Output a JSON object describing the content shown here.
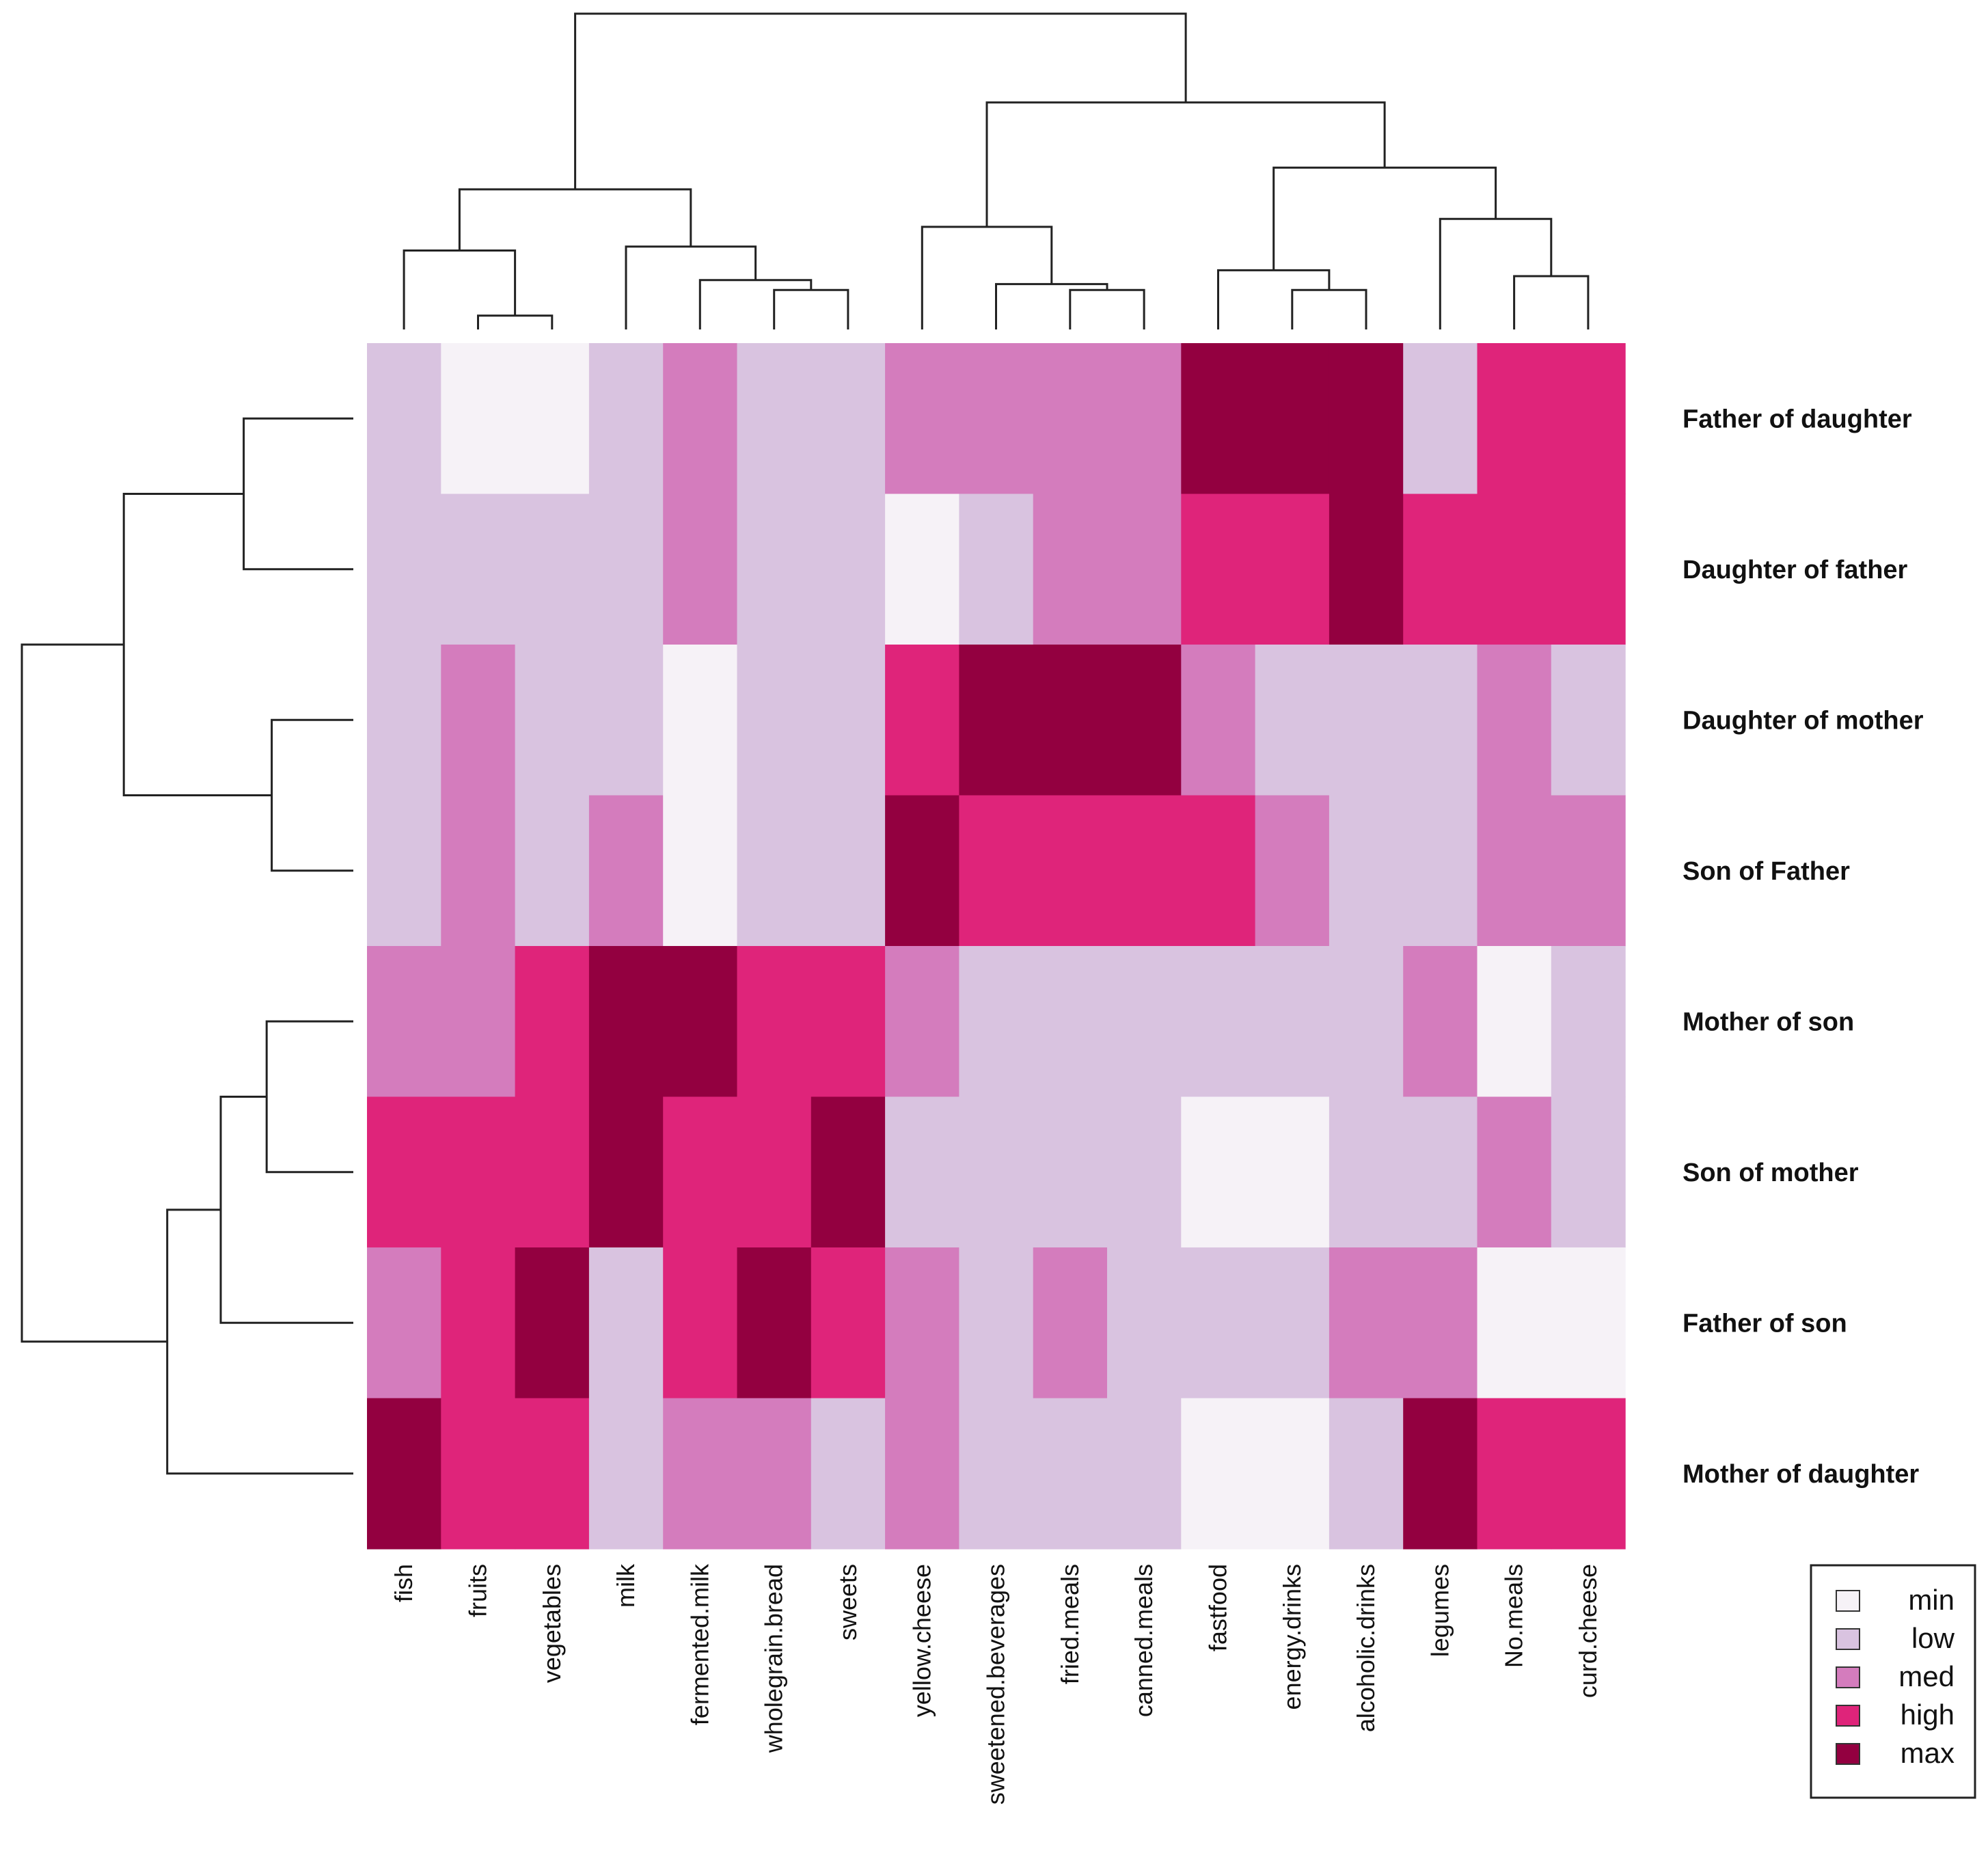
{
  "chart_data": {
    "type": "heatmap",
    "title": "",
    "columns": [
      "fish",
      "fruits",
      "vegetables",
      "milk",
      "fermented.milk",
      "wholegrain.bread",
      "sweets",
      "yellow.cheese",
      "sweetened.beverages",
      "fried.meals",
      "canned.meals",
      "fastfood",
      "energy.drinks",
      "alcoholic.drinks",
      "legumes",
      "No.meals",
      "curd.cheese"
    ],
    "rows": [
      "Father of daughter",
      "Daughter of father",
      "Daughter of mother",
      "Son of Father",
      "Mother of son",
      "Son of mother",
      "Father of son",
      "Mother of daughter"
    ],
    "levels": [
      "min",
      "low",
      "med",
      "high",
      "max"
    ],
    "level_colors": {
      "min": "#f6f2f7",
      "low": "#d9c3e0",
      "med": "#d47cbd",
      "high": "#df247a",
      "max": "#930040"
    },
    "values": [
      [
        "low",
        "min",
        "min",
        "low",
        "med",
        "low",
        "low",
        "med",
        "med",
        "med",
        "med",
        "max",
        "max",
        "max",
        "low",
        "high",
        "high"
      ],
      [
        "low",
        "low",
        "low",
        "low",
        "med",
        "low",
        "low",
        "min",
        "low",
        "med",
        "med",
        "high",
        "high",
        "max",
        "high",
        "high",
        "high"
      ],
      [
        "low",
        "med",
        "low",
        "low",
        "min",
        "low",
        "low",
        "high",
        "max",
        "max",
        "max",
        "med",
        "low",
        "low",
        "low",
        "med",
        "low"
      ],
      [
        "low",
        "med",
        "low",
        "med",
        "min",
        "low",
        "low",
        "max",
        "high",
        "high",
        "high",
        "high",
        "med",
        "low",
        "low",
        "med",
        "med"
      ],
      [
        "med",
        "med",
        "high",
        "max",
        "max",
        "high",
        "high",
        "med",
        "low",
        "low",
        "low",
        "low",
        "low",
        "low",
        "med",
        "min",
        "low"
      ],
      [
        "high",
        "high",
        "high",
        "max",
        "high",
        "high",
        "max",
        "low",
        "low",
        "low",
        "low",
        "min",
        "min",
        "low",
        "low",
        "med",
        "low"
      ],
      [
        "med",
        "high",
        "max",
        "low",
        "high",
        "max",
        "high",
        "med",
        "low",
        "med",
        "low",
        "low",
        "low",
        "med",
        "med",
        "min",
        "min"
      ],
      [
        "max",
        "high",
        "high",
        "low",
        "med",
        "med",
        "low",
        "med",
        "low",
        "low",
        "low",
        "min",
        "min",
        "low",
        "max",
        "high",
        "high"
      ]
    ],
    "column_dendrogram": [
      [
        1,
        2,
        0.07
      ],
      [
        5,
        6,
        0.2
      ],
      [
        4,
        18,
        0.25
      ],
      [
        0,
        17,
        0.4
      ],
      [
        3,
        19,
        0.42
      ],
      [
        20,
        21,
        0.71
      ],
      [
        9,
        10,
        0.2
      ],
      [
        8,
        23,
        0.23
      ],
      [
        7,
        24,
        0.52
      ],
      [
        12,
        13,
        0.2
      ],
      [
        11,
        26,
        0.3
      ],
      [
        15,
        16,
        0.27
      ],
      [
        14,
        28,
        0.56
      ],
      [
        27,
        29,
        0.82
      ],
      [
        25,
        30,
        1.15
      ],
      [
        22,
        31,
        1.6
      ]
    ],
    "row_dendrogram": [
      [
        0,
        1,
        0.43
      ],
      [
        2,
        3,
        0.32
      ],
      [
        8,
        9,
        0.9
      ],
      [
        4,
        5,
        0.34
      ],
      [
        6,
        11,
        0.52
      ],
      [
        7,
        12,
        0.73
      ],
      [
        10,
        13,
        1.3
      ]
    ],
    "legend": {
      "placement": "bottom-right",
      "entries": [
        "min",
        "low",
        "med",
        "high",
        "max"
      ]
    }
  }
}
